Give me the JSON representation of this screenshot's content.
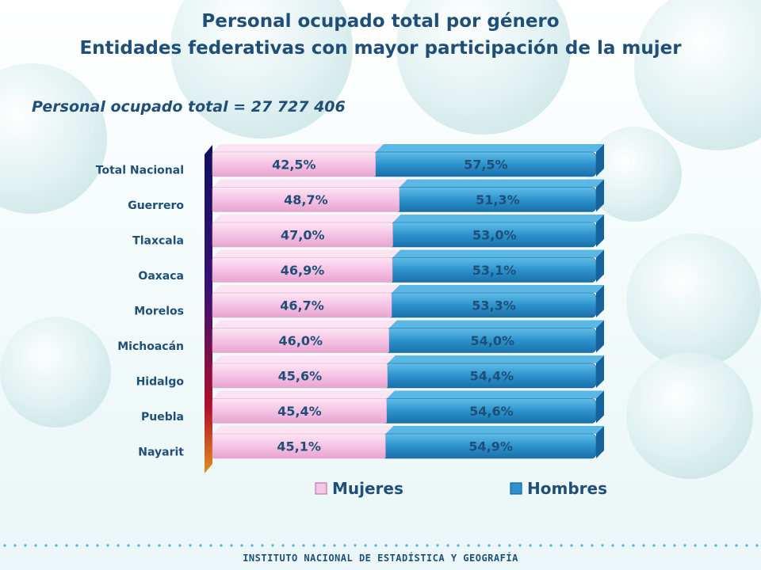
{
  "header": {
    "title_line1": "Personal ocupado total por género",
    "title_line2": "Entidades federativas con mayor participación de la mujer",
    "subtitle": "Personal ocupado total = 27 727 406"
  },
  "footer": {
    "institution": "INSTITUTO NACIONAL DE ESTADÍSTICA Y GEOGRAFÍA"
  },
  "colors": {
    "mujeres": "#f6c6e6",
    "hombres": "#2d93cd",
    "text": "#1f4f79"
  },
  "chart_data": {
    "type": "bar",
    "orientation": "horizontal",
    "stacked": "percent",
    "categories": [
      "Total Nacional",
      "Guerrero",
      "Tlaxcala",
      "Oaxaca",
      "Morelos",
      "Michoacán",
      "Hidalgo",
      "Puebla",
      "Nayarit"
    ],
    "series": [
      {
        "name": "Mujeres",
        "values": [
          42.5,
          48.7,
          47.0,
          46.9,
          46.7,
          46.0,
          45.6,
          45.4,
          45.1
        ],
        "labels": [
          "42,5%",
          "48,7%",
          "47,0%",
          "46,9%",
          "46,7%",
          "46,0%",
          "45,6%",
          "45,4%",
          "45,1%"
        ]
      },
      {
        "name": "Hombres",
        "values": [
          57.5,
          51.3,
          53.0,
          53.1,
          53.3,
          54.0,
          54.4,
          54.6,
          54.9
        ],
        "labels": [
          "57,5%",
          "51,3%",
          "53,0%",
          "53,1%",
          "53,3%",
          "54,0%",
          "54,4%",
          "54,6%",
          "54,9%"
        ]
      }
    ],
    "xlim": [
      0,
      100
    ],
    "legend_position": "bottom",
    "grid": false
  }
}
